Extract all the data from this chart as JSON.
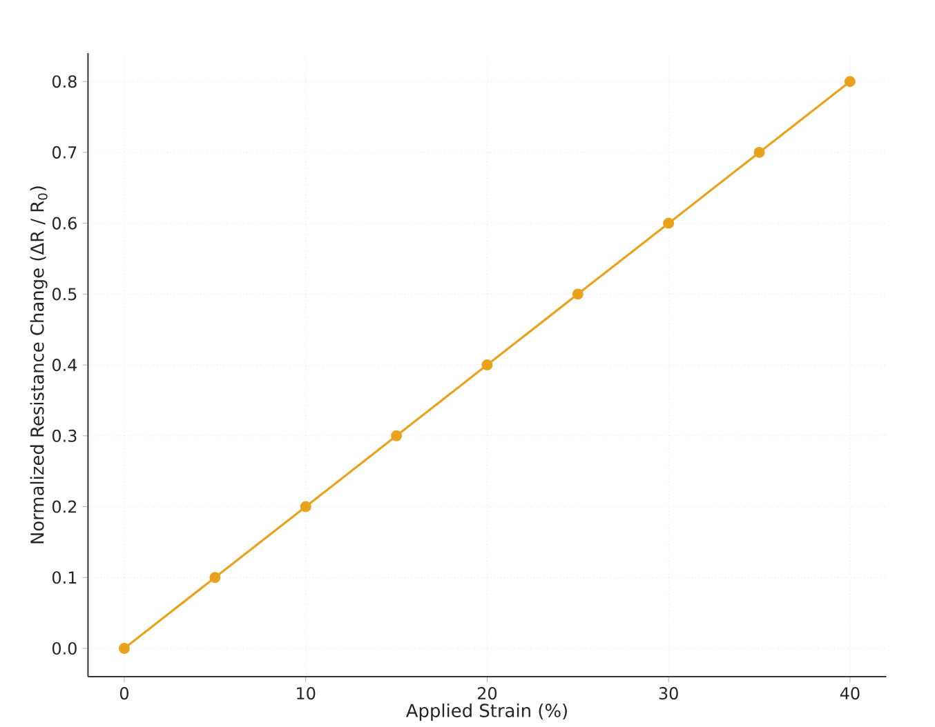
{
  "chart_data": {
    "type": "line",
    "xlabel": "Applied Strain (%)",
    "ylabel": "Normalized Resistance Change (ΔR / R$_{0}$)",
    "x": [
      0,
      5,
      10,
      15,
      20,
      25,
      30,
      35,
      40
    ],
    "series": [
      {
        "color": "#e8a21c",
        "values": [
          0,
          0.1,
          0.2,
          0.3,
          0.4,
          0.5,
          0.6,
          0.7,
          0.8
        ]
      }
    ],
    "xlim": [
      -2,
      42
    ],
    "ylim": [
      -0.04,
      0.84
    ],
    "xticks": [
      0,
      10,
      20,
      30,
      40
    ],
    "yticks": [
      {
        "value": 0,
        "label": "0.0"
      },
      0.1,
      0.2,
      0.3,
      0.4,
      0.5,
      0.6,
      0.7,
      0.8
    ],
    "grid": true,
    "marker": "circle",
    "line_style": "solid"
  }
}
